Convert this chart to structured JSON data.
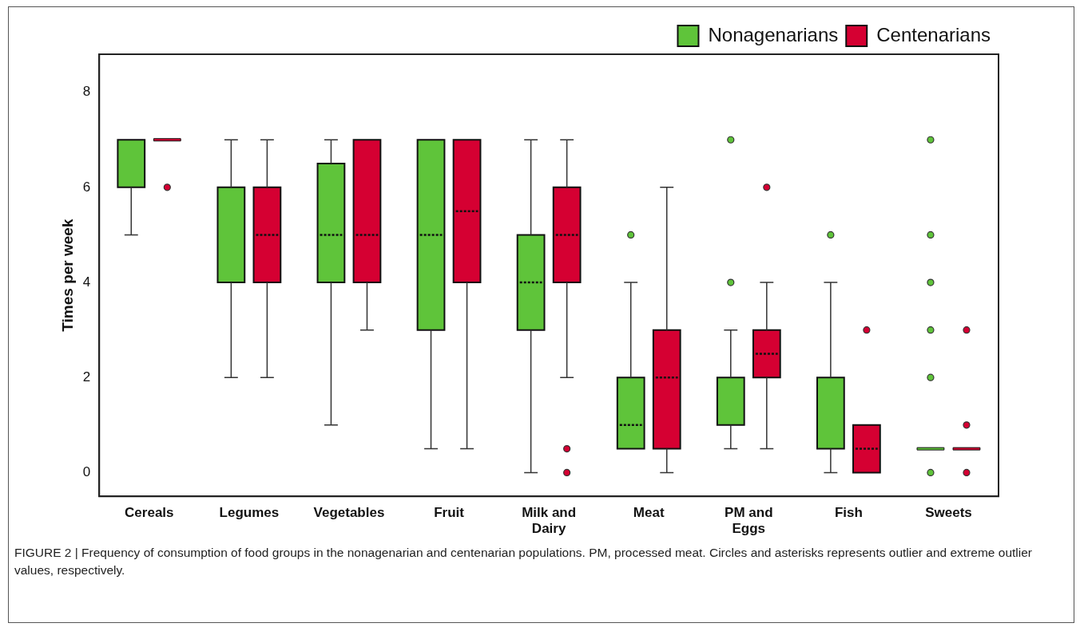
{
  "chart_data": {
    "type": "box",
    "ylabel": "Times per week",
    "categories": [
      "Cereals",
      "Legumes",
      "Vegetables",
      "Fruit",
      "Milk and Dairy",
      "Meat",
      "PM and Eggs",
      "Fish",
      "Sweets"
    ],
    "ylim": [
      -0.5,
      8.8
    ],
    "yticks": [
      0,
      2,
      4,
      6,
      8
    ],
    "grid": false,
    "legend": "top right",
    "annotations": [
      "FIGURE 2 | Frequency of consumption of food groups in the nonagenarian and centenarian populations. PM, processed meat. Circles and asterisks represents outlier and extreme outlier values, respectively."
    ],
    "series": [
      {
        "name": "Nonagenarians",
        "color": "#5fc43a",
        "boxes": [
          {
            "low": 5,
            "q1": 6,
            "median": 7,
            "q3": 7,
            "high": 7
          },
          {
            "low": 2,
            "q1": 4,
            "median": 6,
            "q3": 6,
            "high": 7
          },
          {
            "low": 1,
            "q1": 4,
            "median": 5,
            "q3": 6.5,
            "high": 7
          },
          {
            "low": 0.5,
            "q1": 3,
            "median": 5,
            "q3": 7,
            "high": 7
          },
          {
            "low": 0,
            "q1": 3,
            "median": 4,
            "q3": 5,
            "high": 7
          },
          {
            "low": 0.5,
            "q1": 0.5,
            "median": 1,
            "q3": 2,
            "high": 4,
            "outliers": [
              5
            ]
          },
          {
            "low": 0.5,
            "q1": 1,
            "median": 1,
            "q3": 2,
            "high": 3,
            "outliers": [
              4,
              7
            ]
          },
          {
            "low": 0,
            "q1": 0.5,
            "median": 0.5,
            "q3": 2,
            "high": 4,
            "outliers": [
              5
            ]
          },
          {
            "low": 0.5,
            "q1": 0.5,
            "median": 0.5,
            "q3": 0.5,
            "high": 0.5,
            "outliers": [
              0,
              2,
              3,
              4,
              5,
              7
            ]
          }
        ]
      },
      {
        "name": "Centenarians",
        "color": "#d50032",
        "boxes": [
          {
            "low": 7,
            "q1": 7,
            "median": 7,
            "q3": 7,
            "high": 7,
            "outliers": [
              6
            ]
          },
          {
            "low": 2,
            "q1": 4,
            "median": 5,
            "q3": 6,
            "high": 7
          },
          {
            "low": 3,
            "q1": 4,
            "median": 5,
            "q3": 7,
            "high": 7
          },
          {
            "low": 0.5,
            "q1": 4,
            "median": 5.5,
            "q3": 7,
            "high": 7
          },
          {
            "low": 2,
            "q1": 4,
            "median": 5,
            "q3": 6,
            "high": 7,
            "outliers": [
              0.5,
              0
            ]
          },
          {
            "low": 0,
            "q1": 0.5,
            "median": 2,
            "q3": 3,
            "high": 6
          },
          {
            "low": 0.5,
            "q1": 2,
            "median": 2.5,
            "q3": 3,
            "high": 4,
            "outliers": [
              6
            ]
          },
          {
            "low": 0,
            "q1": 0,
            "median": 0.5,
            "q3": 1,
            "high": 1,
            "outliers": [
              3
            ]
          },
          {
            "low": 0.5,
            "q1": 0.5,
            "median": 0.5,
            "q3": 0.5,
            "high": 0.5,
            "outliers": [
              0,
              1,
              3
            ]
          }
        ]
      }
    ]
  }
}
